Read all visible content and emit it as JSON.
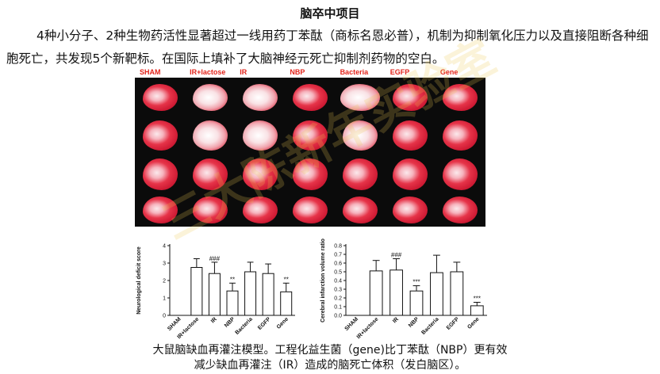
{
  "title": "脑卒中项目",
  "paragraph": "4种小分子、2种生物药活性显著超过一线用药丁苯酞（商标名恩必普），机制为抑制氧化压力以及直接阻断各种细胞死亡，共发现5个新靶标。在国际上填补了大脑神经元死亡抑制剂药物的空白。",
  "figure": {
    "column_labels": [
      "SHAM",
      "IR+lactose",
      "IR",
      "NBP",
      "Bacteria",
      "EGFP",
      "Gene"
    ]
  },
  "watermark": "三大陈新年实验室",
  "caption_line1": "大鼠脑缺血再灌注模型。工程化益生菌（gene)比丁苯酞（NBP）更有效",
  "caption_line2": "减少缺血再灌注（IR）造成的脑死亡体积（发白脑区）。",
  "chart_data": [
    {
      "type": "bar",
      "categories": [
        "SHAM",
        "IR+lactose",
        "IR",
        "NBP",
        "Bacteria",
        "EGFP",
        "Gene"
      ],
      "values": [
        0,
        2.75,
        2.4,
        1.4,
        2.5,
        2.4,
        1.35
      ],
      "errors": [
        0,
        0.5,
        0.65,
        0.45,
        0.55,
        0.55,
        0.5
      ],
      "annotations": [
        "",
        "",
        "###",
        "**",
        "",
        "",
        "**"
      ],
      "ylabel": "Neurological deficit score",
      "ylim": [
        0,
        4
      ],
      "yticks": [
        "0",
        "1",
        "2",
        "3",
        "4"
      ]
    },
    {
      "type": "bar",
      "categories": [
        "SHAM",
        "IR+lactose",
        "IR",
        "NBP",
        "Bacteria",
        "EGFP",
        "Gene"
      ],
      "values": [
        0,
        0.51,
        0.52,
        0.28,
        0.49,
        0.5,
        0.11
      ],
      "errors": [
        0,
        0.12,
        0.13,
        0.06,
        0.2,
        0.11,
        0.04
      ],
      "annotations": [
        "",
        "",
        "###",
        "***",
        "",
        "",
        "***"
      ],
      "ylabel": "Cerebral infarction volume ratio",
      "ylim": [
        0,
        0.8
      ],
      "yticks": [
        "0.0",
        "0.1",
        "0.2",
        "0.3",
        "0.4",
        "0.5",
        "0.6",
        "0.7",
        "0.8"
      ]
    }
  ]
}
